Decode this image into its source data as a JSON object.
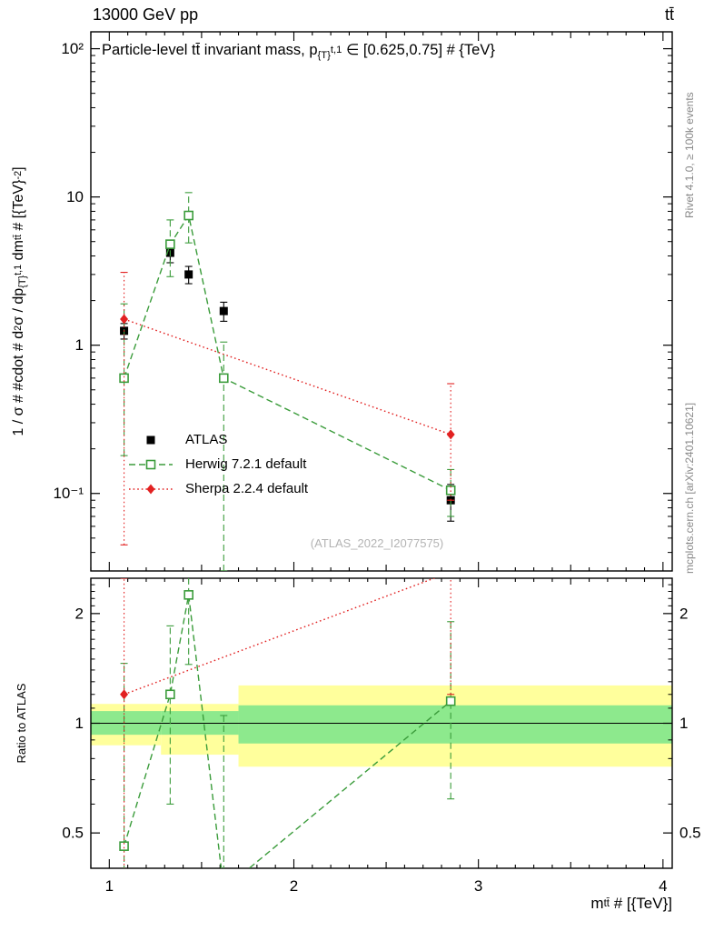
{
  "header": {
    "left": "13000 GeV pp",
    "right": "tt̄"
  },
  "title_segments": [
    {
      "t": "Particle-level tt̄ invariant mass, p",
      "s": "n"
    },
    {
      "t": "{T}",
      "s": "sub"
    },
    {
      "t": "t,1",
      "s": "sup"
    },
    {
      "t": " ∈ [0.625,0.75] # {TeV}",
      "s": "n"
    }
  ],
  "ylabel_segments": [
    {
      "t": "1 / σ # #cdot # d",
      "s": "n"
    },
    {
      "t": "2",
      "s": "sup"
    },
    {
      "t": "σ / dp",
      "s": "n"
    },
    {
      "t": "{T}",
      "s": "sub"
    },
    {
      "t": "t,1",
      "s": "sup"
    },
    {
      "t": " dm",
      "s": "n"
    },
    {
      "t": "tt̄",
      "s": "sup"
    },
    {
      "t": " # [{TeV}",
      "s": "n"
    },
    {
      "t": "-2",
      "s": "sup"
    },
    {
      "t": "]",
      "s": "n"
    }
  ],
  "xlabel_segments": [
    {
      "t": "m",
      "s": "n"
    },
    {
      "t": "tt̄",
      "s": "sup"
    },
    {
      "t": " # [{TeV}]",
      "s": "n"
    }
  ],
  "ratio_label": "Ratio to ATLAS",
  "right_labels": {
    "top": "Rivet 4.1.0, ≥ 100k events",
    "bottom": "mcplots.cern.ch [arXiv:2401.10621]"
  },
  "watermark": "(ATLAS_2022_I2077575)",
  "legend": [
    {
      "label": "ATLAS",
      "color": "#000000",
      "marker": "square-filled",
      "line": "none"
    },
    {
      "label": "Herwig 7.2.1 default",
      "color": "#3b9c3b",
      "marker": "square-open",
      "line": "dashed"
    },
    {
      "label": "Sherpa 2.2.4 default",
      "color": "#e22121",
      "marker": "diamond-filled",
      "line": "dotted"
    }
  ],
  "chart_data": {
    "type": "scatter",
    "title": "Particle-level ttbar invariant mass, pT^{t,1} in [0.625,0.75] TeV",
    "xlabel": "m^{ttbar} [TeV]",
    "ylabel": "1/sigma d^2 sigma / dpT^{t,1} dm^{ttbar} [TeV^-2]",
    "legend_position": "center-left",
    "grid": false,
    "x_scale": "linear",
    "x_range": [
      0.9,
      4.05
    ],
    "main_y_scale": "log",
    "main_y_range": [
      0.03,
      130
    ],
    "ratio_y_scale": "log",
    "ratio_y_range": [
      0.4,
      2.5
    ],
    "x_ticks": [
      {
        "v": 1,
        "label": "1"
      },
      {
        "v": 2,
        "label": "2"
      },
      {
        "v": 3,
        "label": "3"
      },
      {
        "v": 4,
        "label": "4"
      }
    ],
    "main_y_ticks": [
      {
        "v": 100,
        "label": "10²"
      },
      {
        "v": 10,
        "label": "10"
      },
      {
        "v": 1,
        "label": "1"
      },
      {
        "v": 0.1,
        "label": "10⁻¹"
      }
    ],
    "ratio_y_ticks": [
      {
        "v": 2,
        "label": "2"
      },
      {
        "v": 1,
        "label": "1"
      },
      {
        "v": 0.5,
        "label": "0.5"
      }
    ],
    "band_colors": {
      "outer": "#ffff9c",
      "inner": "#8de98d"
    },
    "series": [
      {
        "name": "ATLAS",
        "color": "#000000",
        "marker": "square-filled",
        "line": "none",
        "x": [
          1.08,
          1.33,
          1.43,
          1.62,
          2.85
        ],
        "y": [
          1.25,
          4.2,
          3.0,
          1.7,
          0.09
        ],
        "yerr_lo": [
          0.15,
          0.6,
          0.4,
          0.25,
          0.025
        ],
        "yerr_hi": [
          0.15,
          0.6,
          0.4,
          0.25,
          0.025
        ]
      },
      {
        "name": "Herwig 7.2.1 default",
        "color": "#3b9c3b",
        "marker": "square-open",
        "line": "dashed",
        "x": [
          1.08,
          1.33,
          1.43,
          1.62,
          2.85
        ],
        "y": [
          0.6,
          4.8,
          7.5,
          0.6,
          0.105
        ],
        "yerr_lo": [
          0.42,
          1.9,
          2.6,
          0.57,
          0.035
        ],
        "yerr_hi": [
          1.3,
          2.2,
          3.2,
          0.45,
          0.04
        ]
      },
      {
        "name": "Sherpa 2.2.4 default",
        "color": "#e22121",
        "marker": "diamond-filled",
        "line": "dotted",
        "x": [
          1.08,
          2.85
        ],
        "y": [
          1.5,
          0.25
        ],
        "yerr_lo": [
          1.455,
          0.16
        ],
        "yerr_hi": [
          1.6,
          0.3
        ]
      }
    ],
    "ratio": {
      "reference": "ATLAS",
      "bands": [
        {
          "x0": 0.9,
          "x1": 1.28,
          "yellow": [
            0.87,
            1.13
          ],
          "green": [
            0.93,
            1.08
          ]
        },
        {
          "x0": 1.28,
          "x1": 1.7,
          "yellow": [
            0.82,
            1.13
          ],
          "green": [
            0.93,
            1.08
          ]
        },
        {
          "x0": 1.7,
          "x1": 4.05,
          "yellow": [
            0.76,
            1.27
          ],
          "green": [
            0.88,
            1.12
          ]
        }
      ],
      "series": [
        {
          "name": "Herwig 7.2.1 default",
          "color": "#3b9c3b",
          "marker": "square-open",
          "line": "dashed",
          "x": [
            1.08,
            1.33,
            1.43,
            1.62,
            2.85
          ],
          "y": [
            0.46,
            1.2,
            2.25,
            0.35,
            1.15
          ],
          "yerr_lo": [
            0.33,
            0.6,
            0.8,
            0.2,
            0.53
          ],
          "yerr_hi": [
            1.0,
            0.65,
            0.9,
            0.7,
            0.75
          ]
        },
        {
          "name": "Sherpa 2.2.4 default",
          "color": "#e22121",
          "marker": "diamond-filled",
          "line": "dotted",
          "x": [
            1.08,
            2.85
          ],
          "y": [
            1.2,
            2.6
          ],
          "yerr_lo": [
            1.05,
            1.4
          ],
          "yerr_hi": [
            1.3,
            0.5
          ]
        }
      ]
    }
  }
}
